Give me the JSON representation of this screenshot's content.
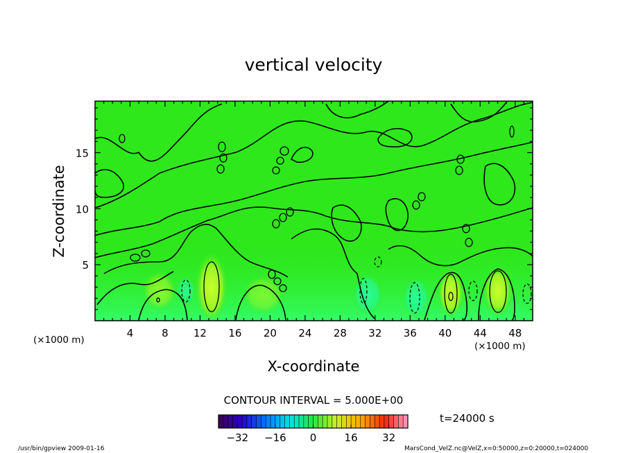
{
  "chart_data": {
    "type": "heatmap",
    "title": "vertical velocity",
    "xlabel": "X-coordinate",
    "ylabel": "Z-coordinate",
    "x_unit_left": "(×1000 m)",
    "x_unit_right": "(×1000 m)",
    "xlim": [
      0,
      50
    ],
    "ylim": [
      0,
      19.6
    ],
    "x_ticks": [
      4,
      8,
      12,
      16,
      20,
      24,
      28,
      32,
      36,
      40,
      44,
      48
    ],
    "y_ticks": [
      5,
      10,
      15
    ],
    "contour_interval_text": "CONTOUR INTERVAL = 5.000E+00",
    "time_text": "t=24000 s",
    "colorbar": {
      "range": [
        -40,
        40
      ],
      "ticks": [
        -32,
        -16,
        0,
        16,
        32
      ]
    },
    "colors": {
      "background_field": "#2ee81c",
      "positive_core": "#b8ff2e",
      "neutral_near_zero": "#30ff8a"
    }
  },
  "footer": {
    "left_text": "/usr/bin/gpview  2009-01-16",
    "right_text": "MarsCond_VelZ.nc@VelZ,x=0:50000,z=0:20000,t=024000"
  }
}
